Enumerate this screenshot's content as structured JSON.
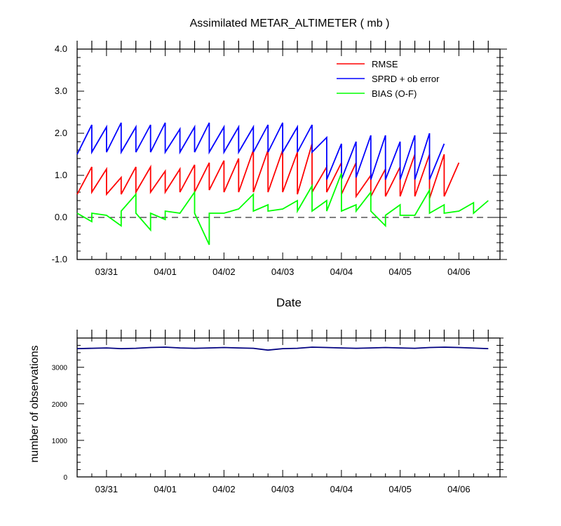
{
  "chart_data": [
    {
      "type": "line",
      "title": "Assimilated METAR_ALTIMETER ( mb )",
      "xlabel": "Date",
      "ylabel": "",
      "ylim": [
        -1.0,
        4.0
      ],
      "xlim": [
        0,
        7.2
      ],
      "x_tick_labels": [
        "03/31",
        "04/01",
        "04/02",
        "04/03",
        "04/04",
        "04/05",
        "04/06"
      ],
      "y_tick_labels": [
        "-1.0",
        "0.0",
        "1.0",
        "2.0",
        "3.0",
        "4.0"
      ],
      "legend_position": "top-right",
      "zero_line": "dashed",
      "series": [
        {
          "name": "RMSE",
          "color": "#ff0000",
          "points": [
            [
              0.0,
              0.55
            ],
            [
              0.25,
              1.2
            ],
            [
              0.25,
              0.6
            ],
            [
              0.5,
              1.15
            ],
            [
              0.5,
              0.55
            ],
            [
              0.75,
              0.95
            ],
            [
              0.75,
              0.55
            ],
            [
              1.0,
              1.2
            ],
            [
              1.0,
              0.6
            ],
            [
              1.25,
              1.2
            ],
            [
              1.25,
              0.6
            ],
            [
              1.5,
              1.1
            ],
            [
              1.5,
              0.6
            ],
            [
              1.75,
              1.15
            ],
            [
              1.75,
              0.6
            ],
            [
              2.0,
              1.25
            ],
            [
              2.0,
              0.6
            ],
            [
              2.25,
              1.3
            ],
            [
              2.25,
              0.65
            ],
            [
              2.5,
              1.35
            ],
            [
              2.5,
              0.6
            ],
            [
              2.75,
              1.4
            ],
            [
              2.75,
              0.6
            ],
            [
              3.0,
              1.6
            ],
            [
              3.0,
              0.6
            ],
            [
              3.25,
              1.6
            ],
            [
              3.25,
              0.6
            ],
            [
              3.5,
              1.6
            ],
            [
              3.5,
              0.6
            ],
            [
              3.75,
              1.55
            ],
            [
              3.75,
              0.55
            ],
            [
              4.0,
              1.75
            ],
            [
              4.0,
              0.6
            ],
            [
              4.25,
              1.2
            ],
            [
              4.25,
              0.6
            ],
            [
              4.5,
              1.3
            ],
            [
              4.5,
              0.55
            ],
            [
              4.75,
              1.3
            ],
            [
              4.75,
              0.5
            ],
            [
              5.0,
              1.0
            ],
            [
              5.0,
              0.5
            ],
            [
              5.25,
              1.15
            ],
            [
              5.25,
              0.5
            ],
            [
              5.5,
              1.2
            ],
            [
              5.5,
              0.5
            ],
            [
              5.75,
              1.5
            ],
            [
              5.75,
              0.5
            ],
            [
              6.0,
              1.5
            ],
            [
              6.0,
              0.45
            ],
            [
              6.25,
              1.5
            ],
            [
              6.25,
              0.5
            ],
            [
              6.5,
              1.3
            ]
          ]
        },
        {
          "name": "SPRD + ob error",
          "color": "#0000ff",
          "points": [
            [
              0.0,
              1.5
            ],
            [
              0.25,
              2.2
            ],
            [
              0.25,
              1.55
            ],
            [
              0.5,
              2.15
            ],
            [
              0.5,
              1.55
            ],
            [
              0.75,
              2.25
            ],
            [
              0.75,
              1.55
            ],
            [
              1.0,
              2.15
            ],
            [
              1.0,
              1.55
            ],
            [
              1.25,
              2.2
            ],
            [
              1.25,
              1.55
            ],
            [
              1.5,
              2.25
            ],
            [
              1.5,
              1.55
            ],
            [
              1.75,
              2.1
            ],
            [
              1.75,
              1.55
            ],
            [
              2.0,
              2.15
            ],
            [
              2.0,
              1.55
            ],
            [
              2.25,
              2.25
            ],
            [
              2.25,
              1.55
            ],
            [
              2.5,
              2.15
            ],
            [
              2.5,
              1.55
            ],
            [
              2.75,
              2.15
            ],
            [
              2.75,
              1.55
            ],
            [
              3.0,
              2.15
            ],
            [
              3.0,
              1.55
            ],
            [
              3.25,
              2.2
            ],
            [
              3.25,
              1.55
            ],
            [
              3.5,
              2.25
            ],
            [
              3.5,
              1.55
            ],
            [
              3.75,
              2.15
            ],
            [
              3.75,
              1.55
            ],
            [
              4.0,
              2.2
            ],
            [
              4.0,
              1.55
            ],
            [
              4.25,
              1.9
            ],
            [
              4.25,
              0.9
            ],
            [
              4.5,
              1.75
            ],
            [
              4.5,
              0.9
            ],
            [
              4.75,
              1.8
            ],
            [
              4.75,
              0.95
            ],
            [
              5.0,
              1.95
            ],
            [
              5.0,
              0.9
            ],
            [
              5.25,
              1.95
            ],
            [
              5.25,
              0.9
            ],
            [
              5.5,
              1.8
            ],
            [
              5.5,
              0.9
            ],
            [
              5.75,
              1.95
            ],
            [
              5.75,
              0.9
            ],
            [
              6.0,
              2.0
            ],
            [
              6.0,
              0.9
            ],
            [
              6.25,
              1.75
            ]
          ]
        },
        {
          "name": "BIAS (O-F)",
          "color": "#00ff00",
          "points": [
            [
              0.0,
              0.1
            ],
            [
              0.25,
              -0.1
            ],
            [
              0.25,
              0.1
            ],
            [
              0.5,
              0.05
            ],
            [
              0.75,
              -0.2
            ],
            [
              0.75,
              0.15
            ],
            [
              1.0,
              0.55
            ],
            [
              1.0,
              0.1
            ],
            [
              1.25,
              -0.3
            ],
            [
              1.25,
              0.1
            ],
            [
              1.5,
              -0.05
            ],
            [
              1.5,
              0.15
            ],
            [
              1.75,
              0.1
            ],
            [
              2.0,
              0.6
            ],
            [
              2.0,
              0.1
            ],
            [
              2.25,
              -0.65
            ],
            [
              2.25,
              0.1
            ],
            [
              2.5,
              0.1
            ],
            [
              2.75,
              0.2
            ],
            [
              3.0,
              0.55
            ],
            [
              3.0,
              0.15
            ],
            [
              3.25,
              0.3
            ],
            [
              3.25,
              0.15
            ],
            [
              3.5,
              0.2
            ],
            [
              3.75,
              0.4
            ],
            [
              3.75,
              0.15
            ],
            [
              4.0,
              0.75
            ],
            [
              4.0,
              0.15
            ],
            [
              4.25,
              0.4
            ],
            [
              4.25,
              0.15
            ],
            [
              4.5,
              1.05
            ],
            [
              4.5,
              0.15
            ],
            [
              4.75,
              0.3
            ],
            [
              4.75,
              0.15
            ],
            [
              5.0,
              0.6
            ],
            [
              5.0,
              0.15
            ],
            [
              5.25,
              -0.2
            ],
            [
              5.25,
              0.05
            ],
            [
              5.5,
              0.3
            ],
            [
              5.5,
              0.05
            ],
            [
              5.75,
              0.05
            ],
            [
              6.0,
              0.65
            ],
            [
              6.0,
              0.1
            ],
            [
              6.25,
              0.3
            ],
            [
              6.25,
              0.1
            ],
            [
              6.5,
              0.15
            ],
            [
              6.75,
              0.35
            ],
            [
              6.75,
              0.1
            ],
            [
              7.0,
              0.4
            ]
          ]
        }
      ]
    },
    {
      "type": "line",
      "title": "",
      "xlabel": "",
      "ylabel": "number of observations",
      "ylim": [
        0,
        3800
      ],
      "xlim": [
        0,
        7.2
      ],
      "x_tick_labels": [
        "03/31",
        "04/01",
        "04/02",
        "04/03",
        "04/04",
        "04/05",
        "04/06"
      ],
      "y_tick_labels": [
        "0",
        "1000",
        "2000",
        "3000"
      ],
      "series": [
        {
          "name": "observations",
          "color": "#000080",
          "points": [
            [
              0.0,
              3510
            ],
            [
              0.25,
              3520
            ],
            [
              0.5,
              3530
            ],
            [
              0.75,
              3510
            ],
            [
              1.0,
              3520
            ],
            [
              1.25,
              3540
            ],
            [
              1.5,
              3550
            ],
            [
              1.75,
              3530
            ],
            [
              2.0,
              3520
            ],
            [
              2.25,
              3530
            ],
            [
              2.5,
              3540
            ],
            [
              2.75,
              3530
            ],
            [
              3.0,
              3520
            ],
            [
              3.25,
              3470
            ],
            [
              3.5,
              3510
            ],
            [
              3.75,
              3520
            ],
            [
              4.0,
              3550
            ],
            [
              4.25,
              3540
            ],
            [
              4.5,
              3530
            ],
            [
              4.75,
              3520
            ],
            [
              5.0,
              3530
            ],
            [
              5.25,
              3540
            ],
            [
              5.5,
              3530
            ],
            [
              5.75,
              3520
            ],
            [
              6.0,
              3540
            ],
            [
              6.25,
              3550
            ],
            [
              6.5,
              3540
            ],
            [
              7.0,
              3510
            ]
          ]
        }
      ]
    }
  ]
}
